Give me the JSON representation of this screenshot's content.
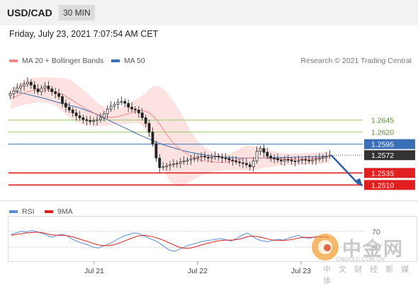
{
  "header": {
    "symbol": "USD/CAD",
    "timeframe": "30 MIN"
  },
  "datetime": "Friday, July 23, 2021 7:07:54 AM CET",
  "legend": {
    "ma20": "MA 20 + Bollinger Bands",
    "ma50": "MA 50",
    "rsi": "RSI",
    "ma9": "9MA",
    "credit": "Research © 2021 Trading Central"
  },
  "colors": {
    "ma20": "#f08a8a",
    "ma50": "#3b6fb5",
    "bollinger": "#fde2e2",
    "resistance": "#9ccc65",
    "pivot": "#3b6fb5",
    "support": "#e02020",
    "current": "#333333",
    "rsi": "#5b8dd9",
    "rsi_ma": "#e02020"
  },
  "watermark": {
    "brand": "中金网",
    "url": "CNGOLD.COM.CN",
    "tagline": "中 文 财 经 新 媒 体"
  },
  "chart_data": [
    {
      "type": "candlestick",
      "title": "USD/CAD 30 MIN",
      "x_ticks": [
        "Jul 21",
        "Jul 22",
        "Jul 23"
      ],
      "ylim": [
        1.2478,
        1.2755
      ],
      "levels": [
        {
          "label": "1.2645",
          "value": 1.2645,
          "kind": "resistance"
        },
        {
          "label": "1.2620",
          "value": 1.262,
          "kind": "resistance"
        },
        {
          "label": "1.2595",
          "value": 1.2595,
          "kind": "pivot"
        },
        {
          "label": "1.2572",
          "value": 1.2572,
          "kind": "current"
        },
        {
          "label": "1.2535",
          "value": 1.2535,
          "kind": "support"
        },
        {
          "label": "1.2510",
          "value": 1.251,
          "kind": "support"
        }
      ],
      "close_series": [
        1.27,
        1.2706,
        1.2712,
        1.2716,
        1.272,
        1.2724,
        1.2718,
        1.271,
        1.2704,
        1.2712,
        1.2716,
        1.271,
        1.2704,
        1.27,
        1.2694,
        1.268,
        1.2672,
        1.2666,
        1.266,
        1.2654,
        1.265,
        1.2646,
        1.2644,
        1.2642,
        1.2644,
        1.2646,
        1.265,
        1.2658,
        1.2668,
        1.2674,
        1.2678,
        1.2682,
        1.2684,
        1.268,
        1.2672,
        1.2668,
        1.2666,
        1.266,
        1.265,
        1.2638,
        1.262,
        1.2596,
        1.2566,
        1.2546,
        1.2548,
        1.255,
        1.2552,
        1.2554,
        1.2555,
        1.2558,
        1.256,
        1.2562,
        1.2564,
        1.2566,
        1.2568,
        1.257,
        1.2568,
        1.2566,
        1.2568,
        1.257,
        1.2568,
        1.2566,
        1.2565,
        1.2562,
        1.256,
        1.2558,
        1.2556,
        1.2555,
        1.2552,
        1.2548,
        1.256,
        1.258,
        1.2586,
        1.2578,
        1.257,
        1.2566,
        1.2565,
        1.2562,
        1.256,
        1.2563,
        1.2562,
        1.256,
        1.2559,
        1.2561,
        1.2563,
        1.2562,
        1.256,
        1.2562,
        1.2564,
        1.2566,
        1.2568,
        1.257,
        1.2572
      ],
      "ma20_series": [
        1.269,
        1.2694,
        1.2698,
        1.2702,
        1.2705,
        1.2707,
        1.2708,
        1.2708,
        1.2707,
        1.2706,
        1.2703,
        1.2699,
        1.2694,
        1.2688,
        1.2682,
        1.2676,
        1.267,
        1.2665,
        1.266,
        1.2656,
        1.2653,
        1.2651,
        1.2651,
        1.2652,
        1.2654,
        1.2657,
        1.266,
        1.2663,
        1.2665,
        1.2664,
        1.266,
        1.2652,
        1.264,
        1.2626,
        1.2612,
        1.26,
        1.259,
        1.2582,
        1.2576,
        1.257,
        1.2566,
        1.2562,
        1.256,
        1.2559,
        1.2558,
        1.2557,
        1.2557,
        1.2558,
        1.256,
        1.2562,
        1.2564,
        1.2566,
        1.2566,
        1.2566,
        1.2566,
        1.2566,
        1.2565,
        1.2564,
        1.2564,
        1.2564,
        1.2564,
        1.2564,
        1.2564,
        1.2564,
        1.2565,
        1.2565,
        1.2566,
        1.2566,
        1.2567,
        1.2568
      ],
      "ma50_series": [
        1.2705,
        1.2702,
        1.2698,
        1.2694,
        1.269,
        1.2685,
        1.268,
        1.2676,
        1.2672,
        1.2666,
        1.266,
        1.2652,
        1.2644,
        1.2636,
        1.2628,
        1.262,
        1.2612,
        1.2605,
        1.2598,
        1.2592,
        1.2587,
        1.2582,
        1.2578,
        1.2575,
        1.2572,
        1.257,
        1.2568,
        1.2567,
        1.2566,
        1.2566,
        1.2566,
        1.2566,
        1.2567,
        1.2567,
        1.2567,
        1.2568,
        1.2568,
        1.2569,
        1.2569,
        1.257
      ],
      "rsi_scale": [
        {
          "label": "70",
          "value": 70
        },
        {
          "label": "30",
          "value": 30
        }
      ],
      "rsi_series": [
        62,
        66,
        70,
        68,
        72,
        69,
        65,
        60,
        55,
        60,
        63,
        58,
        50,
        44,
        40,
        36,
        30,
        28,
        33,
        38,
        44,
        52,
        58,
        62,
        66,
        64,
        58,
        52,
        47,
        40,
        30,
        22,
        20,
        26,
        32,
        36,
        40,
        44,
        46,
        48,
        50,
        52,
        48,
        46,
        52,
        60,
        66,
        58,
        50,
        46,
        44,
        47,
        50,
        48,
        52,
        56,
        60,
        55,
        52,
        55,
        58,
        56,
        54
      ],
      "rsi_ma_series": [
        60,
        62,
        64,
        66,
        67,
        68,
        67,
        64,
        61,
        60,
        60,
        59,
        56,
        52,
        48,
        44,
        40,
        36,
        34,
        34,
        36,
        40,
        45,
        50,
        55,
        59,
        60,
        58,
        55,
        51,
        46,
        40,
        34,
        29,
        27,
        28,
        31,
        35,
        39,
        42,
        45,
        47,
        48,
        48,
        49,
        52,
        56,
        58,
        57,
        54,
        51,
        48,
        47,
        47,
        48,
        50,
        53,
        55,
        55,
        55,
        56,
        56,
        55
      ]
    }
  ]
}
